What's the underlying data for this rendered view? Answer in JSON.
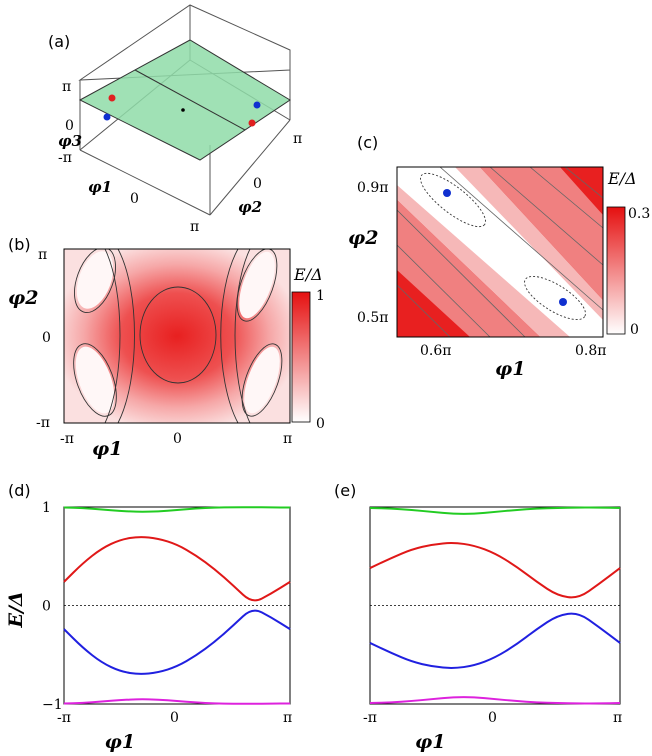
{
  "panels": {
    "a": {
      "label": "(a)",
      "ticks": {
        "phi3": [
          "π",
          "0",
          "-π"
        ],
        "phi1": [
          "0"
        ],
        "phi2": [
          "π",
          "0",
          "π"
        ]
      },
      "axis": {
        "phi1": "φ1",
        "phi2": "φ2",
        "phi3": "φ3"
      }
    },
    "b": {
      "label": "(b)",
      "xlabel": "φ1",
      "ylabel": "φ2",
      "xticks": [
        "-π",
        "0",
        "π"
      ],
      "yticks": [
        "π",
        "0",
        "-π"
      ],
      "colorbar_title": "E/Δ",
      "colorbar_ticks": [
        "1",
        "0"
      ]
    },
    "c": {
      "label": "(c)",
      "xlabel": "φ1",
      "ylabel": "φ2",
      "xticks": [
        "0.6π",
        "0.8π"
      ],
      "yticks": [
        "0.9π",
        "0.5π"
      ],
      "colorbar_title": "E/Δ",
      "colorbar_ticks": [
        "0.3",
        "0"
      ]
    },
    "d": {
      "label": "(d)"
    },
    "e": {
      "label": "(e)"
    }
  },
  "colors": {
    "green_plane": "#8fdca8",
    "red_dot": "#e02020",
    "blue_dot": "#1030d0",
    "band_green": "#22cc22",
    "band_red": "#e01818",
    "band_blue": "#2020e0",
    "band_magenta": "#dd22dd"
  },
  "chart_data": [
    {
      "type": "line",
      "panel": "d",
      "xlabel": "φ1",
      "ylabel": "E/Δ",
      "xticks": [
        "-π",
        "0",
        "π"
      ],
      "yticks": [
        "1",
        "0",
        "−1"
      ],
      "xlim": [
        -3.1416,
        3.1416
      ],
      "ylim": [
        -1,
        1
      ],
      "x": [
        -3.1416,
        -2.618,
        -2.0944,
        -1.5708,
        -1.0472,
        -0.5236,
        0,
        0.5236,
        1.0472,
        1.5708,
        2.0944,
        2.618,
        3.1416
      ],
      "series": [
        {
          "color": "#22cc22",
          "values": [
            0.995,
            0.99,
            0.975,
            0.96,
            0.95,
            0.955,
            0.97,
            0.985,
            0.995,
            0.998,
            0.998,
            0.996,
            0.995
          ]
        },
        {
          "color": "#e01818",
          "values": [
            0.24,
            0.43,
            0.58,
            0.67,
            0.7,
            0.68,
            0.62,
            0.51,
            0.37,
            0.2,
            0.02,
            0.12,
            0.24
          ]
        },
        {
          "color": "#2020e0",
          "values": [
            -0.24,
            -0.43,
            -0.58,
            -0.67,
            -0.7,
            -0.68,
            -0.62,
            -0.51,
            -0.37,
            -0.2,
            -0.02,
            -0.12,
            -0.24
          ]
        },
        {
          "color": "#dd22dd",
          "values": [
            -0.995,
            -0.99,
            -0.975,
            -0.96,
            -0.95,
            -0.955,
            -0.97,
            -0.985,
            -0.995,
            -0.998,
            -0.998,
            -0.996,
            -0.995
          ]
        }
      ]
    },
    {
      "type": "line",
      "panel": "e",
      "xlabel": "φ1",
      "xticks": [
        "-π",
        "0",
        "π"
      ],
      "yticks": [
        "1",
        "0",
        "−1"
      ],
      "xlim": [
        -3.1416,
        3.1416
      ],
      "ylim": [
        -1,
        1
      ],
      "x": [
        -3.1416,
        -2.618,
        -2.0944,
        -1.5708,
        -1.0472,
        -0.5236,
        0,
        0.5236,
        1.0472,
        1.5708,
        2.0944,
        2.618,
        3.1416
      ],
      "series": [
        {
          "color": "#22cc22",
          "values": [
            0.99,
            0.985,
            0.97,
            0.95,
            0.93,
            0.93,
            0.95,
            0.97,
            0.985,
            0.99,
            0.995,
            0.994,
            0.99
          ]
        },
        {
          "color": "#e01818",
          "values": [
            0.38,
            0.48,
            0.57,
            0.62,
            0.64,
            0.61,
            0.53,
            0.4,
            0.24,
            0.1,
            0.07,
            0.22,
            0.38
          ]
        },
        {
          "color": "#2020e0",
          "values": [
            -0.38,
            -0.48,
            -0.57,
            -0.62,
            -0.64,
            -0.61,
            -0.53,
            -0.4,
            -0.24,
            -0.1,
            -0.07,
            -0.22,
            -0.38
          ]
        },
        {
          "color": "#dd22dd",
          "values": [
            -0.99,
            -0.985,
            -0.97,
            -0.95,
            -0.93,
            -0.93,
            -0.95,
            -0.97,
            -0.985,
            -0.99,
            -0.995,
            -0.994,
            -0.99
          ]
        }
      ]
    }
  ]
}
